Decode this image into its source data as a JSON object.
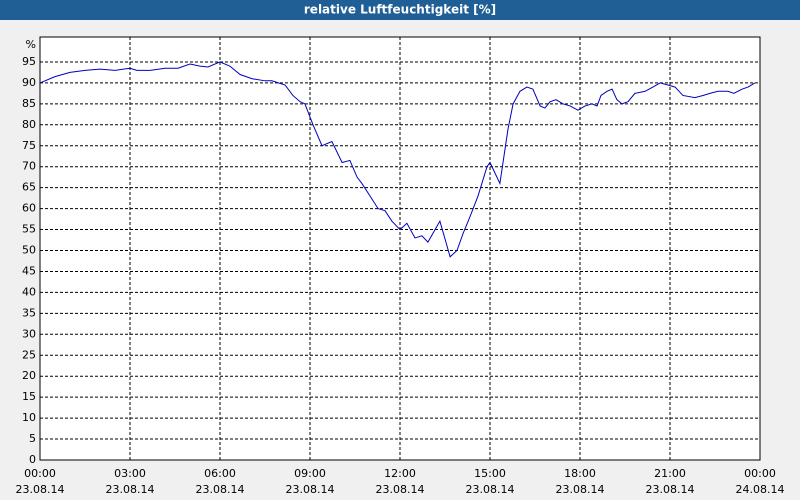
{
  "chart_data": {
    "type": "line",
    "title": "relative Luftfeuchtigkeit [%]",
    "y_label": "%",
    "x": [
      0,
      0.5,
      1,
      1.5,
      2,
      2.5,
      3,
      3.23,
      3.67,
      4.17,
      4.6,
      5,
      5.33,
      5.6,
      6,
      6.33,
      6.67,
      7.07,
      7.5,
      7.73,
      8.17,
      8.43,
      8.67,
      8.83,
      9.1,
      9.4,
      9.73,
      10.07,
      10.33,
      10.57,
      10.73,
      11,
      11.27,
      11.5,
      11.73,
      12,
      12.23,
      12.5,
      12.73,
      12.93,
      13.33,
      13.67,
      13.9,
      14.1,
      14.33,
      14.6,
      14.9,
      15,
      15.33,
      15.6,
      15.77,
      16,
      16.23,
      16.43,
      16.67,
      16.83,
      17,
      17.2,
      17.43,
      17.67,
      17.93,
      18.17,
      18.4,
      18.57,
      18.7,
      18.9,
      19.07,
      19.23,
      19.4,
      19.6,
      19.83,
      20.17,
      20.43,
      20.67,
      20.93,
      21.17,
      21.43,
      21.83,
      22.1,
      22.33,
      22.6,
      22.93,
      23.13,
      23.4,
      23.6,
      23.83
    ],
    "series": [
      {
        "name": "relative Luftfeuchtigkeit",
        "color": "#0000c0",
        "values": [
          90,
          91.5,
          92.5,
          93,
          93.3,
          93,
          93.5,
          93,
          93,
          93.5,
          93.5,
          94.5,
          94,
          93.8,
          95,
          94,
          92,
          91,
          90.5,
          90.5,
          89.5,
          87,
          85.5,
          85,
          80,
          75,
          76,
          71,
          71.5,
          67.5,
          66,
          63,
          60,
          59.5,
          57,
          55,
          56.5,
          53,
          53.5,
          52,
          57,
          48.5,
          50,
          54,
          58,
          63,
          70,
          71,
          66,
          79,
          85,
          88,
          89,
          88.5,
          84.5,
          84,
          85.5,
          86,
          85,
          84.5,
          83.5,
          84.5,
          85,
          84.5,
          87,
          88,
          88.5,
          86,
          85,
          85.5,
          87.5,
          88,
          89,
          90,
          89.5,
          89,
          87,
          86.5,
          87,
          87.5,
          88,
          88,
          87.5,
          88.5,
          89,
          90
        ]
      }
    ],
    "xlim": [
      0,
      24
    ],
    "xticks": [
      {
        "value": 0,
        "label": "00:00"
      },
      {
        "value": 3,
        "label": "03:00"
      },
      {
        "value": 6,
        "label": "06:00"
      },
      {
        "value": 9,
        "label": "09:00"
      },
      {
        "value": 12,
        "label": "12:00"
      },
      {
        "value": 15,
        "label": "15:00"
      },
      {
        "value": 18,
        "label": "18:00"
      },
      {
        "value": 21,
        "label": "21:00"
      },
      {
        "value": 24,
        "label": "00:00"
      }
    ],
    "x_dates": [
      "23.08.14",
      "23.08.14",
      "23.08.14",
      "23.08.14",
      "23.08.14",
      "23.08.14",
      "23.08.14",
      "23.08.14",
      "24.08.14"
    ],
    "ylim": [
      0,
      100
    ],
    "yticks": [
      0,
      5,
      10,
      15,
      20,
      25,
      30,
      35,
      40,
      45,
      50,
      55,
      60,
      65,
      70,
      75,
      80,
      85,
      90,
      95
    ],
    "grid": true
  }
}
